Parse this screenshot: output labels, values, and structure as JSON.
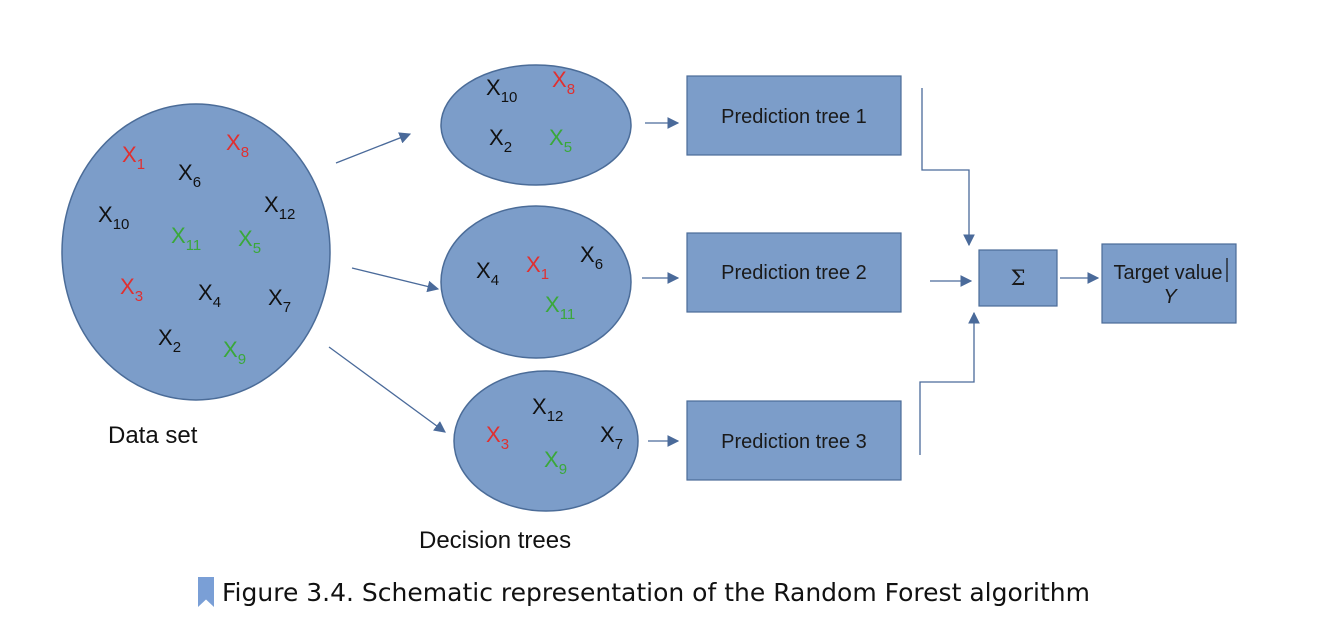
{
  "colors": {
    "node_fill": "#7c9dc9",
    "node_stroke": "#4b6c98",
    "arrow": "#4a6a9a",
    "x_black": "#111111",
    "x_red": "#e03030",
    "x_green": "#3aa83a"
  },
  "dataset": {
    "label": "Data set",
    "items": [
      {
        "b": "X",
        "s": "1",
        "color": "red"
      },
      {
        "b": "X",
        "s": "8",
        "color": "red"
      },
      {
        "b": "X",
        "s": "6",
        "color": "black"
      },
      {
        "b": "X",
        "s": "10",
        "color": "black"
      },
      {
        "b": "X",
        "s": "12",
        "color": "black"
      },
      {
        "b": "X",
        "s": "11",
        "color": "green"
      },
      {
        "b": "X",
        "s": "5",
        "color": "green"
      },
      {
        "b": "X",
        "s": "3",
        "color": "red"
      },
      {
        "b": "X",
        "s": "4",
        "color": "black"
      },
      {
        "b": "X",
        "s": "7",
        "color": "black"
      },
      {
        "b": "X",
        "s": "2",
        "color": "black"
      },
      {
        "b": "X",
        "s": "9",
        "color": "green"
      }
    ]
  },
  "decision_trees": {
    "label": "Decision trees",
    "trees": [
      {
        "items": [
          {
            "b": "X",
            "s": "10",
            "color": "black"
          },
          {
            "b": "X",
            "s": "8",
            "color": "red"
          },
          {
            "b": "X",
            "s": "2",
            "color": "black"
          },
          {
            "b": "X",
            "s": "5",
            "color": "green"
          }
        ]
      },
      {
        "items": [
          {
            "b": "X",
            "s": "4",
            "color": "black"
          },
          {
            "b": "X",
            "s": "1",
            "color": "red"
          },
          {
            "b": "X",
            "s": "6",
            "color": "black"
          },
          {
            "b": "X",
            "s": "11",
            "color": "green"
          }
        ]
      },
      {
        "items": [
          {
            "b": "X",
            "s": "12",
            "color": "black"
          },
          {
            "b": "X",
            "s": "3",
            "color": "red"
          },
          {
            "b": "X",
            "s": "7",
            "color": "black"
          },
          {
            "b": "X",
            "s": "9",
            "color": "green"
          }
        ]
      }
    ]
  },
  "predictions": [
    "Prediction tree 1",
    "Prediction tree 2",
    "Prediction tree 3"
  ],
  "sum_symbol": "Σ",
  "target": {
    "line1": "Target value",
    "line2": "Y"
  },
  "caption": "Figure 3.4. Schematic representation of the Random Forest algorithm"
}
